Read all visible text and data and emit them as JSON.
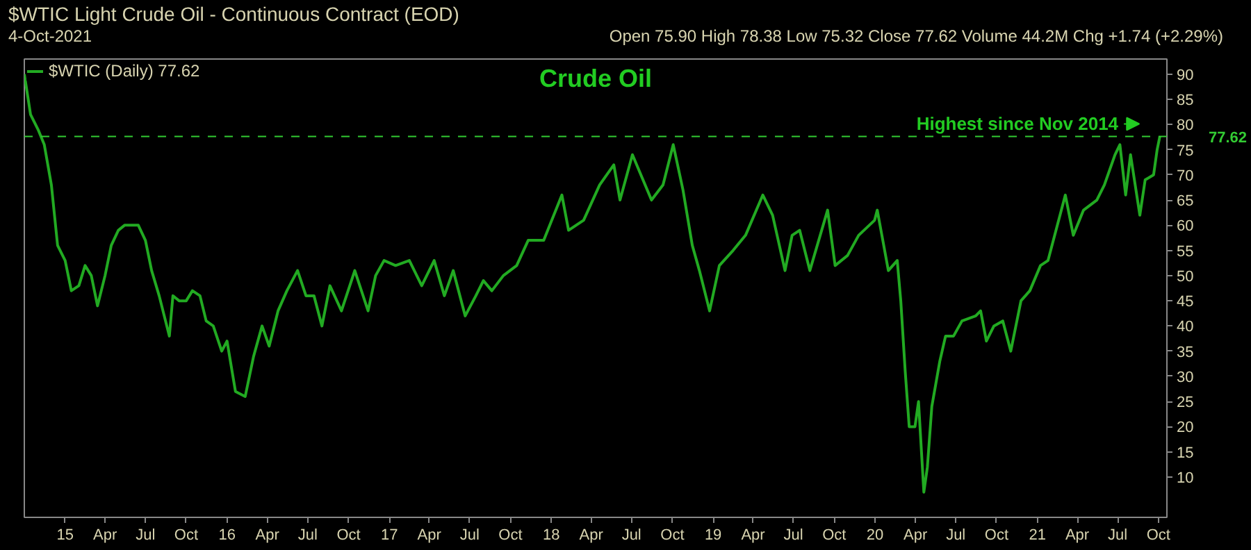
{
  "chart_data": {
    "type": "line",
    "title": "Crude Oil",
    "subtitle": "$WTIC Light Crude Oil - Continuous Contract (EOD)",
    "annotations": [
      "4-Oct-2021",
      "Open 75.90 High 78.38 Low 75.32 Close 77.62 Volume 44.2M Chg +1.74 (+2.29%)",
      {
        "text": "Highest since Nov 2014",
        "x": "2021-10-04",
        "y": 77.62
      }
    ],
    "x": [
      "2014-10-01",
      "2014-10-15",
      "2014-11-01",
      "2014-11-15",
      "2014-12-01",
      "2014-12-15",
      "2015-01-01",
      "2015-01-15",
      "2015-02-01",
      "2015-02-15",
      "2015-03-01",
      "2015-03-15",
      "2015-04-01",
      "2015-04-15",
      "2015-05-01",
      "2015-05-15",
      "2015-06-01",
      "2015-06-15",
      "2015-07-01",
      "2015-07-15",
      "2015-08-01",
      "2015-08-24",
      "2015-09-01",
      "2015-09-15",
      "2015-10-01",
      "2015-10-15",
      "2015-11-01",
      "2015-11-15",
      "2015-12-01",
      "2015-12-20",
      "2016-01-01",
      "2016-01-20",
      "2016-02-11",
      "2016-03-01",
      "2016-03-20",
      "2016-04-05",
      "2016-04-25",
      "2016-05-15",
      "2016-06-08",
      "2016-06-27",
      "2016-07-15",
      "2016-08-02",
      "2016-08-20",
      "2016-09-15",
      "2016-10-15",
      "2016-11-14",
      "2016-12-01",
      "2016-12-20",
      "2017-01-15",
      "2017-02-15",
      "2017-03-15",
      "2017-04-12",
      "2017-05-05",
      "2017-05-25",
      "2017-06-21",
      "2017-07-15",
      "2017-08-01",
      "2017-08-20",
      "2017-09-15",
      "2017-10-15",
      "2017-11-10",
      "2017-12-15",
      "2018-01-25",
      "2018-02-09",
      "2018-03-15",
      "2018-04-20",
      "2018-05-22",
      "2018-06-05",
      "2018-07-03",
      "2018-08-15",
      "2018-09-10",
      "2018-10-03",
      "2018-10-25",
      "2018-11-15",
      "2018-12-01",
      "2018-12-24",
      "2019-01-15",
      "2019-02-15",
      "2019-03-15",
      "2019-04-23",
      "2019-05-15",
      "2019-06-12",
      "2019-06-28",
      "2019-07-15",
      "2019-08-07",
      "2019-09-16",
      "2019-10-03",
      "2019-10-31",
      "2019-11-25",
      "2019-12-31",
      "2020-01-06",
      "2020-01-31",
      "2020-02-20",
      "2020-02-28",
      "2020-03-09",
      "2020-03-18",
      "2020-03-31",
      "2020-04-08",
      "2020-04-20",
      "2020-04-28",
      "2020-05-08",
      "2020-05-26",
      "2020-06-08",
      "2020-06-26",
      "2020-07-15",
      "2020-08-15",
      "2020-08-26",
      "2020-09-08",
      "2020-09-25",
      "2020-10-15",
      "2020-11-02",
      "2020-11-25",
      "2020-12-15",
      "2021-01-08",
      "2021-01-25",
      "2021-02-15",
      "2021-03-05",
      "2021-03-23",
      "2021-04-15",
      "2021-05-15",
      "2021-06-01",
      "2021-06-25",
      "2021-07-06",
      "2021-07-19",
      "2021-07-30",
      "2021-08-20",
      "2021-09-01",
      "2021-09-20",
      "2021-09-28",
      "2021-10-04"
    ],
    "series": [
      {
        "name": "$WTIC (Daily) 77.62",
        "color": "#22aa22",
        "values": [
          90,
          82,
          79,
          76,
          68,
          56,
          53,
          47,
          48,
          52,
          50,
          44,
          50,
          56,
          59,
          60,
          60,
          60,
          57,
          51,
          46,
          38,
          46,
          45,
          45,
          47,
          46,
          41,
          40,
          35,
          37,
          27,
          26,
          34,
          40,
          36,
          43,
          47,
          51,
          46,
          46,
          40,
          48,
          43,
          51,
          43,
          50,
          53,
          52,
          53,
          48,
          53,
          46,
          51,
          42,
          46,
          49,
          47,
          50,
          52,
          57,
          57,
          66,
          59,
          61,
          68,
          72,
          65,
          74,
          65,
          68,
          76,
          67,
          56,
          51,
          43,
          52,
          55,
          58,
          66,
          62,
          51,
          58,
          59,
          51,
          63,
          52,
          54,
          58,
          61,
          63,
          51,
          53,
          45,
          31,
          20,
          20,
          25,
          7,
          12,
          24,
          33,
          38,
          38,
          41,
          42,
          43,
          37,
          40,
          41,
          35,
          45,
          47,
          52,
          53,
          60,
          66,
          58,
          63,
          65,
          68,
          74,
          76,
          66,
          74,
          62,
          69,
          70,
          75,
          77.62
        ]
      }
    ],
    "xlim": [
      "2014-10-01",
      "2021-10-20"
    ],
    "xticks": [
      {
        "value": "2015-01-01",
        "label": "15"
      },
      {
        "value": "2015-04-01",
        "label": "Apr"
      },
      {
        "value": "2015-07-01",
        "label": "Jul"
      },
      {
        "value": "2015-10-01",
        "label": "Oct"
      },
      {
        "value": "2016-01-01",
        "label": "16"
      },
      {
        "value": "2016-04-01",
        "label": "Apr"
      },
      {
        "value": "2016-07-01",
        "label": "Jul"
      },
      {
        "value": "2016-10-01",
        "label": "Oct"
      },
      {
        "value": "2017-01-01",
        "label": "17"
      },
      {
        "value": "2017-04-01",
        "label": "Apr"
      },
      {
        "value": "2017-07-01",
        "label": "Jul"
      },
      {
        "value": "2017-10-01",
        "label": "Oct"
      },
      {
        "value": "2018-01-01",
        "label": "18"
      },
      {
        "value": "2018-04-01",
        "label": "Apr"
      },
      {
        "value": "2018-07-01",
        "label": "Jul"
      },
      {
        "value": "2018-10-01",
        "label": "Oct"
      },
      {
        "value": "2019-01-01",
        "label": "19"
      },
      {
        "value": "2019-04-01",
        "label": "Apr"
      },
      {
        "value": "2019-07-01",
        "label": "Jul"
      },
      {
        "value": "2019-10-01",
        "label": "Oct"
      },
      {
        "value": "2020-01-01",
        "label": "20"
      },
      {
        "value": "2020-04-01",
        "label": "Apr"
      },
      {
        "value": "2020-07-01",
        "label": "Jul"
      },
      {
        "value": "2020-10-01",
        "label": "Oct"
      },
      {
        "value": "2021-01-01",
        "label": "21"
      },
      {
        "value": "2021-04-01",
        "label": "Apr"
      },
      {
        "value": "2021-07-01",
        "label": "Jul"
      },
      {
        "value": "2021-10-01",
        "label": "Oct"
      }
    ],
    "ylim": [
      2,
      93
    ],
    "yticks": [
      10,
      15,
      20,
      25,
      30,
      35,
      40,
      45,
      50,
      55,
      60,
      65,
      70,
      75,
      80,
      85,
      90
    ],
    "ref_lines": [
      {
        "axis": "y",
        "value": 77.62,
        "label": "77.62",
        "color": "#33cc33",
        "line_style": "dashed"
      }
    ],
    "grid": false,
    "legend": "top left",
    "marker": "none",
    "line_style": "solid"
  }
}
